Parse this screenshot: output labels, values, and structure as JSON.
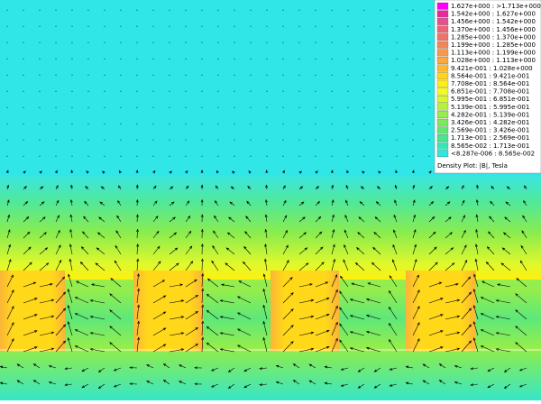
{
  "legend": {
    "entries": [
      {
        "label": "1.627e+000 : >1.713e+000",
        "color": "#ff00ff"
      },
      {
        "label": "1.542e+000 : 1.627e+000",
        "color": "#e8289c"
      },
      {
        "label": "1.456e+000 : 1.542e+000",
        "color": "#e7508f"
      },
      {
        "label": "1.370e+000 : 1.456e+000",
        "color": "#ea6476"
      },
      {
        "label": "1.285e+000 : 1.370e+000",
        "color": "#ee7466"
      },
      {
        "label": "1.199e+000 : 1.285e+000",
        "color": "#f38658"
      },
      {
        "label": "1.113e+000 : 1.199e+000",
        "color": "#f8984a"
      },
      {
        "label": "1.028e+000 : 1.113e+000",
        "color": "#fba83c"
      },
      {
        "label": "9.421e-001 : 1.028e+000",
        "color": "#feb82c"
      },
      {
        "label": "8.564e-001 : 9.421e-001",
        "color": "#ffd41a"
      },
      {
        "label": "7.708e-001 : 8.564e-001",
        "color": "#ffef0c"
      },
      {
        "label": "6.851e-001 : 7.708e-001",
        "color": "#f4fb20"
      },
      {
        "label": "5.995e-001 : 6.851e-001",
        "color": "#d6f830"
      },
      {
        "label": "5.139e-001 : 5.995e-001",
        "color": "#b4f23c"
      },
      {
        "label": "4.282e-001 : 5.139e-001",
        "color": "#96ee48"
      },
      {
        "label": "3.426e-001 : 4.282e-001",
        "color": "#7aea58"
      },
      {
        "label": "2.569e-001 : 3.426e-001",
        "color": "#60e874"
      },
      {
        "label": "1.713e-001 : 2.569e-001",
        "color": "#48e690"
      },
      {
        "label": "8.565e-002 : 1.713e-001",
        "color": "#38e6b4"
      },
      {
        "label": "<8.287e-006 : 8.565e-002",
        "color": "#30e6e0"
      }
    ],
    "caption": "Density Plot: |B|, Tesla"
  }
}
